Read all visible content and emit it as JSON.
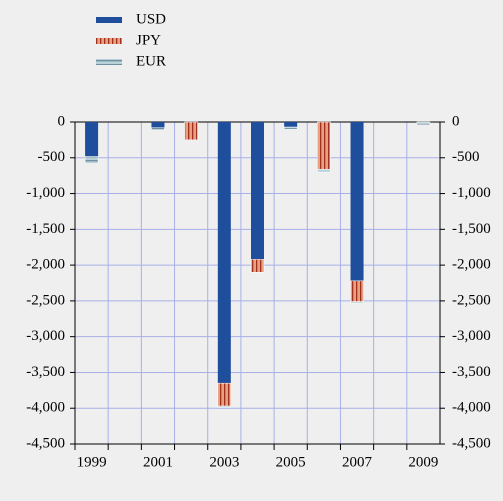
{
  "chart_data": {
    "type": "bar",
    "stacked": true,
    "categories": [
      "1999",
      null,
      "2001",
      null,
      "2003",
      null,
      "2005",
      null,
      "2007",
      null,
      "2009"
    ],
    "series": [
      {
        "name": "USD",
        "color": "#1f4e9c",
        "values": [
          -480,
          0,
          -80,
          0,
          -3650,
          -1920,
          -70,
          0,
          -2220,
          0,
          0
        ]
      },
      {
        "name": "JPY",
        "color": "#e8a080",
        "values": [
          0,
          0,
          0,
          -250,
          -320,
          -180,
          0,
          -660,
          -290,
          0,
          0
        ]
      },
      {
        "name": "EUR",
        "color": "#a8c0cc",
        "values": [
          -100,
          0,
          -30,
          0,
          -20,
          0,
          -30,
          -40,
          -20,
          0,
          -40
        ]
      }
    ],
    "ylim": [
      -4500,
      0
    ],
    "yticks": [
      {
        "value": -4500,
        "label": "-4,500"
      },
      {
        "value": -4000,
        "label": "-4,000"
      },
      {
        "value": -3500,
        "label": "-3,500"
      },
      {
        "value": -3000,
        "label": "-3,000"
      },
      {
        "value": -2500,
        "label": "-2,500"
      },
      {
        "value": -2000,
        "label": "-2,000"
      },
      {
        "value": -1500,
        "label": "-1,500"
      },
      {
        "value": -1000,
        "label": "-1,000"
      },
      -500,
      0
    ],
    "grid": true,
    "legend": "top-left"
  }
}
